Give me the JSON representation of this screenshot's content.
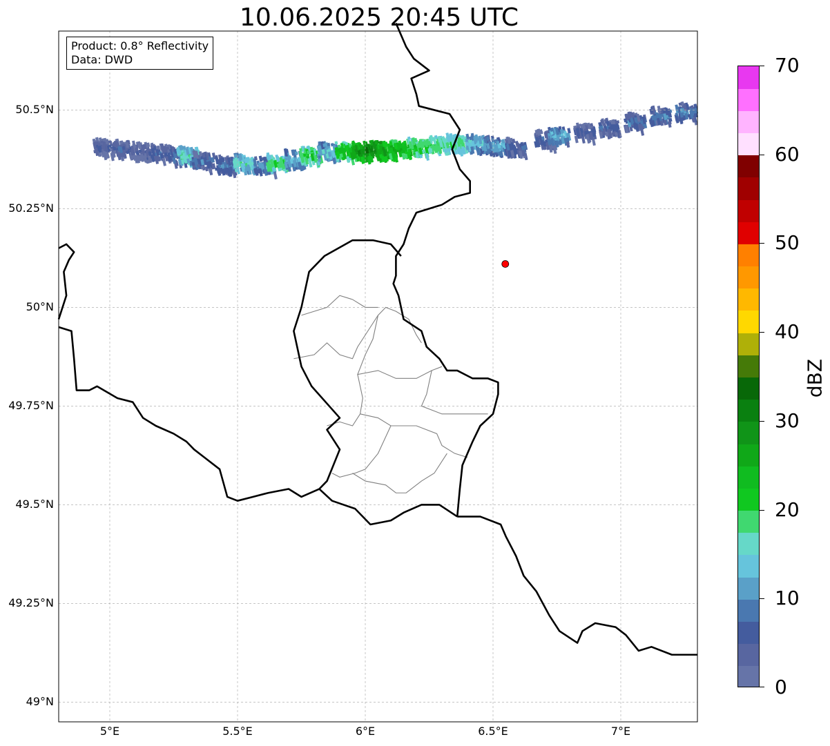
{
  "title": "10.06.2025 20:45 UTC",
  "info": {
    "product": "Product: 0.8° Reflectivity",
    "source": "Data: DWD"
  },
  "map": {
    "lon_range": [
      4.8,
      7.3
    ],
    "lat_range": [
      48.95,
      50.7
    ],
    "gridlines": true,
    "lat_ticks": [
      {
        "value": 50.5,
        "label": "50.5°N"
      },
      {
        "value": 50.25,
        "label": "50.25°N"
      },
      {
        "value": 50.0,
        "label": "50°N"
      },
      {
        "value": 49.75,
        "label": "49.75°N"
      },
      {
        "value": 49.5,
        "label": "49.5°N"
      },
      {
        "value": 49.25,
        "label": "49.25°N"
      },
      {
        "value": 49.0,
        "label": "49°N"
      }
    ],
    "lon_ticks": [
      {
        "value": 5.0,
        "label": "5°E"
      },
      {
        "value": 5.5,
        "label": "5.5°E"
      },
      {
        "value": 6.0,
        "label": "6°E"
      },
      {
        "value": 6.5,
        "label": "6.5°E"
      },
      {
        "value": 7.0,
        "label": "7°E"
      }
    ],
    "radar_site": {
      "lon": 6.548,
      "lat": 50.11,
      "color": "#ff0000"
    },
    "borders": {
      "color": "#000000",
      "lines": [
        [
          [
            6.12,
            50.72
          ],
          [
            6.16,
            50.66
          ],
          [
            6.19,
            50.63
          ],
          [
            6.25,
            50.6
          ],
          [
            6.18,
            50.58
          ],
          [
            6.2,
            50.54
          ],
          [
            6.21,
            50.51
          ],
          [
            6.33,
            50.49
          ],
          [
            6.37,
            50.45
          ],
          [
            6.34,
            50.4
          ],
          [
            6.37,
            50.35
          ],
          [
            6.41,
            50.32
          ],
          [
            6.41,
            50.29
          ],
          [
            6.35,
            50.28
          ],
          [
            6.3,
            50.26
          ],
          [
            6.2,
            50.24
          ],
          [
            6.17,
            50.2
          ],
          [
            6.15,
            50.16
          ],
          [
            6.12,
            50.13
          ],
          [
            6.12,
            50.08
          ],
          [
            6.11,
            50.06
          ],
          [
            6.13,
            50.03
          ],
          [
            6.15,
            49.97
          ],
          [
            6.22,
            49.94
          ],
          [
            6.24,
            49.9
          ],
          [
            6.29,
            49.87
          ],
          [
            6.32,
            49.84
          ],
          [
            6.36,
            49.84
          ],
          [
            6.42,
            49.82
          ],
          [
            6.48,
            49.82
          ],
          [
            6.52,
            49.81
          ],
          [
            6.52,
            49.78
          ],
          [
            6.5,
            49.73
          ],
          [
            6.45,
            49.7
          ],
          [
            6.42,
            49.66
          ],
          [
            6.38,
            49.6
          ],
          [
            6.37,
            49.54
          ],
          [
            6.36,
            49.47
          ]
        ],
        [
          [
            6.36,
            49.47
          ],
          [
            6.45,
            49.47
          ],
          [
            6.53,
            49.45
          ],
          [
            6.55,
            49.42
          ],
          [
            6.59,
            49.37
          ],
          [
            6.62,
            49.32
          ],
          [
            6.67,
            49.28
          ],
          [
            6.72,
            49.22
          ],
          [
            6.76,
            49.18
          ],
          [
            6.83,
            49.15
          ],
          [
            6.85,
            49.18
          ],
          [
            6.9,
            49.2
          ],
          [
            6.98,
            49.19
          ],
          [
            7.02,
            49.17
          ],
          [
            7.07,
            49.13
          ],
          [
            7.12,
            49.14
          ],
          [
            7.2,
            49.12
          ],
          [
            7.3,
            49.12
          ]
        ],
        [
          [
            4.8,
            50.15
          ],
          [
            4.83,
            50.16
          ],
          [
            4.86,
            50.14
          ],
          [
            4.84,
            50.12
          ],
          [
            4.82,
            50.09
          ],
          [
            4.83,
            50.03
          ],
          [
            4.8,
            49.97
          ]
        ],
        [
          [
            4.8,
            49.95
          ],
          [
            4.85,
            49.94
          ],
          [
            4.86,
            49.87
          ],
          [
            4.87,
            49.79
          ],
          [
            4.92,
            49.79
          ],
          [
            4.95,
            49.8
          ],
          [
            5.03,
            49.77
          ],
          [
            5.09,
            49.76
          ],
          [
            5.13,
            49.72
          ],
          [
            5.18,
            49.7
          ],
          [
            5.25,
            49.68
          ],
          [
            5.3,
            49.66
          ],
          [
            5.33,
            49.64
          ],
          [
            5.37,
            49.62
          ],
          [
            5.43,
            49.59
          ],
          [
            5.46,
            49.52
          ],
          [
            5.5,
            49.51
          ],
          [
            5.56,
            49.52
          ],
          [
            5.62,
            49.53
          ],
          [
            5.7,
            49.54
          ],
          [
            5.75,
            49.52
          ],
          [
            5.82,
            49.54
          ]
        ],
        [
          [
            5.82,
            49.54
          ],
          [
            5.87,
            49.51
          ],
          [
            5.96,
            49.49
          ],
          [
            6.02,
            49.45
          ],
          [
            6.1,
            49.46
          ],
          [
            6.15,
            49.48
          ],
          [
            6.22,
            49.5
          ],
          [
            6.29,
            49.5
          ],
          [
            6.36,
            49.47
          ]
        ],
        [
          [
            5.82,
            49.54
          ],
          [
            5.85,
            49.56
          ],
          [
            5.9,
            49.64
          ],
          [
            5.85,
            49.69
          ],
          [
            5.9,
            49.72
          ],
          [
            5.79,
            49.8
          ],
          [
            5.75,
            49.85
          ],
          [
            5.72,
            49.94
          ],
          [
            5.75,
            50.0
          ],
          [
            5.78,
            50.09
          ],
          [
            5.84,
            50.13
          ],
          [
            5.95,
            50.17
          ],
          [
            6.03,
            50.17
          ],
          [
            6.1,
            50.16
          ],
          [
            6.14,
            50.13
          ]
        ]
      ]
    },
    "districts": {
      "color": "#808080",
      "lines": [
        [
          [
            5.72,
            49.87
          ],
          [
            5.8,
            49.88
          ],
          [
            5.85,
            49.91
          ],
          [
            5.9,
            49.88
          ],
          [
            5.95,
            49.87
          ],
          [
            5.97,
            49.9
          ],
          [
            6.02,
            49.95
          ],
          [
            6.05,
            49.98
          ],
          [
            6.08,
            50.0
          ],
          [
            6.12,
            49.99
          ],
          [
            6.17,
            49.97
          ],
          [
            6.2,
            49.93
          ],
          [
            6.22,
            49.91
          ]
        ],
        [
          [
            5.75,
            49.98
          ],
          [
            5.85,
            50.0
          ],
          [
            5.9,
            50.03
          ],
          [
            5.95,
            50.02
          ],
          [
            6.0,
            50.0
          ],
          [
            6.05,
            50.0
          ]
        ],
        [
          [
            6.05,
            49.98
          ],
          [
            6.03,
            49.92
          ],
          [
            6.0,
            49.88
          ],
          [
            5.97,
            49.83
          ],
          [
            6.05,
            49.84
          ],
          [
            6.12,
            49.82
          ],
          [
            6.2,
            49.82
          ],
          [
            6.26,
            49.84
          ],
          [
            6.3,
            49.85
          ]
        ],
        [
          [
            6.26,
            49.84
          ],
          [
            6.24,
            49.78
          ],
          [
            6.22,
            49.75
          ],
          [
            6.3,
            49.73
          ],
          [
            6.38,
            49.73
          ],
          [
            6.48,
            49.73
          ]
        ],
        [
          [
            5.97,
            49.83
          ],
          [
            5.99,
            49.77
          ],
          [
            5.98,
            49.73
          ],
          [
            5.95,
            49.7
          ],
          [
            5.9,
            49.71
          ],
          [
            5.85,
            49.7
          ]
        ],
        [
          [
            5.98,
            49.73
          ],
          [
            6.05,
            49.72
          ],
          [
            6.1,
            49.7
          ],
          [
            6.2,
            49.7
          ],
          [
            6.28,
            49.68
          ],
          [
            6.3,
            49.65
          ],
          [
            6.35,
            49.63
          ],
          [
            6.4,
            49.62
          ]
        ],
        [
          [
            6.1,
            49.7
          ],
          [
            6.05,
            49.63
          ],
          [
            6.0,
            49.59
          ],
          [
            5.96,
            49.58
          ],
          [
            5.9,
            49.57
          ],
          [
            5.87,
            49.58
          ]
        ],
        [
          [
            5.95,
            49.58
          ],
          [
            6.0,
            49.56
          ],
          [
            6.08,
            49.55
          ],
          [
            6.12,
            49.53
          ],
          [
            6.16,
            49.53
          ],
          [
            6.22,
            49.56
          ],
          [
            6.27,
            49.58
          ],
          [
            6.3,
            49.61
          ],
          [
            6.32,
            49.63
          ]
        ]
      ]
    },
    "echoes": {
      "palette_note": "reflectivity shading uses colorbar colors",
      "cells": [
        {
          "lon": 4.97,
          "lat": 50.41,
          "dbz": 8
        },
        {
          "lon": 5.05,
          "lat": 50.405,
          "dbz": 9
        },
        {
          "lon": 5.12,
          "lat": 50.4,
          "dbz": 8
        },
        {
          "lon": 5.2,
          "lat": 50.395,
          "dbz": 10
        },
        {
          "lon": 5.28,
          "lat": 50.385,
          "dbz": 12
        },
        {
          "lon": 5.3,
          "lat": 50.39,
          "dbz": 20
        },
        {
          "lon": 5.36,
          "lat": 50.375,
          "dbz": 11
        },
        {
          "lon": 5.45,
          "lat": 50.365,
          "dbz": 12
        },
        {
          "lon": 5.52,
          "lat": 50.37,
          "dbz": 19
        },
        {
          "lon": 5.6,
          "lat": 50.365,
          "dbz": 13
        },
        {
          "lon": 5.65,
          "lat": 50.37,
          "dbz": 22
        },
        {
          "lon": 5.72,
          "lat": 50.38,
          "dbz": 16
        },
        {
          "lon": 5.78,
          "lat": 50.39,
          "dbz": 24
        },
        {
          "lon": 5.85,
          "lat": 50.4,
          "dbz": 16
        },
        {
          "lon": 5.92,
          "lat": 50.4,
          "dbz": 26
        },
        {
          "lon": 5.98,
          "lat": 50.4,
          "dbz": 32
        },
        {
          "lon": 6.03,
          "lat": 50.405,
          "dbz": 34
        },
        {
          "lon": 6.08,
          "lat": 50.4,
          "dbz": 30
        },
        {
          "lon": 6.13,
          "lat": 50.405,
          "dbz": 28
        },
        {
          "lon": 6.2,
          "lat": 50.41,
          "dbz": 25
        },
        {
          "lon": 6.28,
          "lat": 50.415,
          "dbz": 23
        },
        {
          "lon": 6.35,
          "lat": 50.42,
          "dbz": 22
        },
        {
          "lon": 6.43,
          "lat": 50.42,
          "dbz": 17
        },
        {
          "lon": 6.5,
          "lat": 50.415,
          "dbz": 15
        },
        {
          "lon": 6.58,
          "lat": 50.41,
          "dbz": 10
        },
        {
          "lon": 6.7,
          "lat": 50.43,
          "dbz": 10
        },
        {
          "lon": 6.75,
          "lat": 50.44,
          "dbz": 15
        },
        {
          "lon": 6.85,
          "lat": 50.45,
          "dbz": 9
        },
        {
          "lon": 6.95,
          "lat": 50.46,
          "dbz": 10
        },
        {
          "lon": 7.05,
          "lat": 50.475,
          "dbz": 11
        },
        {
          "lon": 7.15,
          "lat": 50.49,
          "dbz": 12
        },
        {
          "lon": 7.25,
          "lat": 50.5,
          "dbz": 12
        }
      ]
    }
  },
  "colorbar": {
    "label": "dBZ",
    "min": 0,
    "max": 70,
    "tick_values": [
      0,
      10,
      20,
      30,
      40,
      50,
      60,
      70
    ],
    "tick_labels": [
      "0",
      "10",
      "20",
      "30",
      "40",
      "50",
      "60",
      "70"
    ],
    "colors": [
      "#6674a8",
      "#5866a0",
      "#445c9e",
      "#4a78b0",
      "#5aa0c8",
      "#66c4dc",
      "#66d8c8",
      "#40d870",
      "#10c820",
      "#10bc20",
      "#10a818",
      "#109418",
      "#0a8010",
      "#086808",
      "#457a08",
      "#afb008",
      "#ffd800",
      "#ffb800",
      "#ff9800",
      "#ff8000",
      "#e00000",
      "#c00000",
      "#a00000",
      "#800000",
      "#ffe0ff",
      "#ffb4ff",
      "#ff70ff",
      "#e838f0"
    ]
  }
}
